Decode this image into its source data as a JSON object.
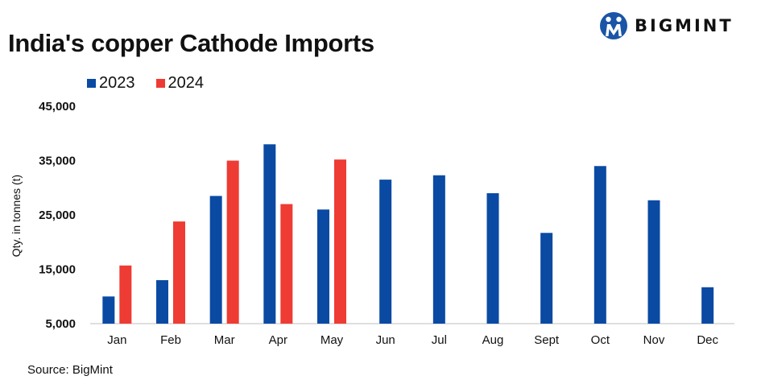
{
  "header": {
    "title": "India's copper Cathode Imports",
    "brand": "BIGMINT",
    "brand_icon": "bigmint-logo-icon",
    "brand_color": "#1a55a6"
  },
  "footer": {
    "source": "Source: BigMint"
  },
  "chart_data": {
    "type": "bar",
    "title": "India's copper Cathode Imports",
    "xlabel": "",
    "ylabel": "Qty. in tonnes (t)",
    "categories": [
      "Jan",
      "Feb",
      "Mar",
      "Apr",
      "May",
      "Jun",
      "Jul",
      "Aug",
      "Sept",
      "Oct",
      "Nov",
      "Dec"
    ],
    "series": [
      {
        "name": "2023",
        "color": "#0a4aa3",
        "values": [
          10000,
          13000,
          28500,
          38000,
          26000,
          31500,
          32300,
          29000,
          21700,
          34000,
          27700,
          11700
        ]
      },
      {
        "name": "2024",
        "color": "#ee3b33",
        "values": [
          15700,
          23800,
          35000,
          27000,
          35200,
          null,
          null,
          null,
          null,
          null,
          null,
          null
        ]
      }
    ],
    "ylim": [
      5000,
      45000
    ],
    "yticks": [
      5000,
      15000,
      25000,
      35000,
      45000
    ],
    "ytick_labels": [
      "5,000",
      "15,000",
      "25,000",
      "35,000",
      "45,000"
    ],
    "grid": false,
    "legend_position": "top-left"
  }
}
